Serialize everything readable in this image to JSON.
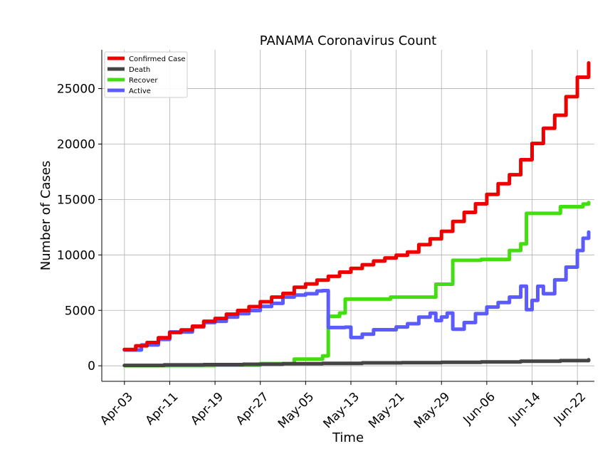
{
  "chart_data": {
    "type": "line",
    "title": "PANAMA Coronavirus Count",
    "xlabel": "Time",
    "ylabel": "Number of Cases",
    "x_ticks": [
      "Apr-03",
      "Apr-11",
      "Apr-19",
      "Apr-27",
      "May-05",
      "May-13",
      "May-21",
      "May-29",
      "Jun-06",
      "Jun-14",
      "Jun-22"
    ],
    "y_ticks": [
      0,
      5000,
      10000,
      15000,
      20000,
      25000
    ],
    "ylim": [
      -1400,
      28500
    ],
    "xlim": [
      "2020-03-30",
      "2020-06-25"
    ],
    "grid": true,
    "legend_position": "top-left",
    "series": [
      {
        "name": "Confirmed Case",
        "color": "#ee0000",
        "points": [
          [
            "2020-04-03",
            1475
          ],
          [
            "2020-04-05",
            1801
          ],
          [
            "2020-04-07",
            2100
          ],
          [
            "2020-04-09",
            2528
          ],
          [
            "2020-04-11",
            3000
          ],
          [
            "2020-04-13",
            3234
          ],
          [
            "2020-04-15",
            3574
          ],
          [
            "2020-04-17",
            4016
          ],
          [
            "2020-04-19",
            4273
          ],
          [
            "2020-04-21",
            4658
          ],
          [
            "2020-04-23",
            4992
          ],
          [
            "2020-04-25",
            5338
          ],
          [
            "2020-04-27",
            5779
          ],
          [
            "2020-04-29",
            6200
          ],
          [
            "2020-05-01",
            6532
          ],
          [
            "2020-05-03",
            7090
          ],
          [
            "2020-05-05",
            7387
          ],
          [
            "2020-05-07",
            7731
          ],
          [
            "2020-05-09",
            8070
          ],
          [
            "2020-05-11",
            8448
          ],
          [
            "2020-05-13",
            8783
          ],
          [
            "2020-05-15",
            9118
          ],
          [
            "2020-05-17",
            9449
          ],
          [
            "2020-05-19",
            9726
          ],
          [
            "2020-05-21",
            9977
          ],
          [
            "2020-05-23",
            10267
          ],
          [
            "2020-05-25",
            10926
          ],
          [
            "2020-05-27",
            11447
          ],
          [
            "2020-05-29",
            12131
          ],
          [
            "2020-05-31",
            13018
          ],
          [
            "2020-06-02",
            13837
          ],
          [
            "2020-06-04",
            14609
          ],
          [
            "2020-06-06",
            15463
          ],
          [
            "2020-06-08",
            16425
          ],
          [
            "2020-06-10",
            17233
          ],
          [
            "2020-06-12",
            18586
          ],
          [
            "2020-06-14",
            20059
          ],
          [
            "2020-06-16",
            21422
          ],
          [
            "2020-06-18",
            22597
          ],
          [
            "2020-06-20",
            24274
          ],
          [
            "2020-06-22",
            26030
          ],
          [
            "2020-06-24",
            27314
          ]
        ]
      },
      {
        "name": "Death",
        "color": "#444444",
        "points": [
          [
            "2020-04-03",
            37
          ],
          [
            "2020-04-10",
            79
          ],
          [
            "2020-04-17",
            110
          ],
          [
            "2020-04-24",
            141
          ],
          [
            "2020-05-01",
            188
          ],
          [
            "2020-05-08",
            218
          ],
          [
            "2020-05-15",
            266
          ],
          [
            "2020-05-22",
            279
          ],
          [
            "2020-05-29",
            310
          ],
          [
            "2020-06-05",
            352
          ],
          [
            "2020-06-12",
            410
          ],
          [
            "2020-06-19",
            470
          ],
          [
            "2020-06-24",
            535
          ]
        ]
      },
      {
        "name": "Recover",
        "color": "#44dd11",
        "points": [
          [
            "2020-04-03",
            13
          ],
          [
            "2020-04-11",
            20
          ],
          [
            "2020-04-19",
            60
          ],
          [
            "2020-04-27",
            200
          ],
          [
            "2020-05-03",
            600
          ],
          [
            "2020-05-08",
            900
          ],
          [
            "2020-05-09",
            4467
          ],
          [
            "2020-05-11",
            4760
          ],
          [
            "2020-05-12",
            6017
          ],
          [
            "2020-05-20",
            6194
          ],
          [
            "2020-05-28",
            7358
          ],
          [
            "2020-05-31",
            9514
          ],
          [
            "2020-06-05",
            9600
          ],
          [
            "2020-06-10",
            10400
          ],
          [
            "2020-06-12",
            11003
          ],
          [
            "2020-06-13",
            13748
          ],
          [
            "2020-06-19",
            14352
          ],
          [
            "2020-06-23",
            14591
          ],
          [
            "2020-06-24",
            14727
          ]
        ]
      },
      {
        "name": "Active",
        "color": "#5b5bff",
        "points": [
          [
            "2020-04-03",
            1425
          ],
          [
            "2020-04-06",
            1880
          ],
          [
            "2020-04-09",
            2380
          ],
          [
            "2020-04-11",
            3050
          ],
          [
            "2020-04-15",
            3500
          ],
          [
            "2020-04-17",
            3900
          ],
          [
            "2020-04-19",
            4015
          ],
          [
            "2020-04-21",
            4390
          ],
          [
            "2020-04-23",
            4700
          ],
          [
            "2020-04-25",
            4986
          ],
          [
            "2020-04-27",
            5350
          ],
          [
            "2020-04-29",
            5630
          ],
          [
            "2020-05-01",
            6200
          ],
          [
            "2020-05-03",
            6380
          ],
          [
            "2020-05-05",
            6500
          ],
          [
            "2020-05-07",
            6750
          ],
          [
            "2020-05-08",
            6780
          ],
          [
            "2020-05-09",
            3450
          ],
          [
            "2020-05-12",
            3480
          ],
          [
            "2020-05-13",
            2550
          ],
          [
            "2020-05-15",
            2850
          ],
          [
            "2020-05-17",
            3250
          ],
          [
            "2020-05-21",
            3500
          ],
          [
            "2020-05-23",
            3800
          ],
          [
            "2020-05-25",
            4395
          ],
          [
            "2020-05-27",
            4750
          ],
          [
            "2020-05-28",
            4080
          ],
          [
            "2020-05-29",
            4400
          ],
          [
            "2020-05-30",
            4755
          ],
          [
            "2020-05-31",
            3300
          ],
          [
            "2020-06-02",
            3900
          ],
          [
            "2020-06-04",
            4700
          ],
          [
            "2020-06-06",
            5300
          ],
          [
            "2020-06-08",
            5700
          ],
          [
            "2020-06-10",
            6200
          ],
          [
            "2020-06-12",
            7180
          ],
          [
            "2020-06-13",
            5060
          ],
          [
            "2020-06-14",
            5900
          ],
          [
            "2020-06-15",
            7170
          ],
          [
            "2020-06-16",
            6500
          ],
          [
            "2020-06-18",
            7750
          ],
          [
            "2020-06-20",
            8900
          ],
          [
            "2020-06-22",
            10400
          ],
          [
            "2020-06-23",
            11500
          ],
          [
            "2020-06-24",
            12052
          ]
        ]
      }
    ]
  }
}
